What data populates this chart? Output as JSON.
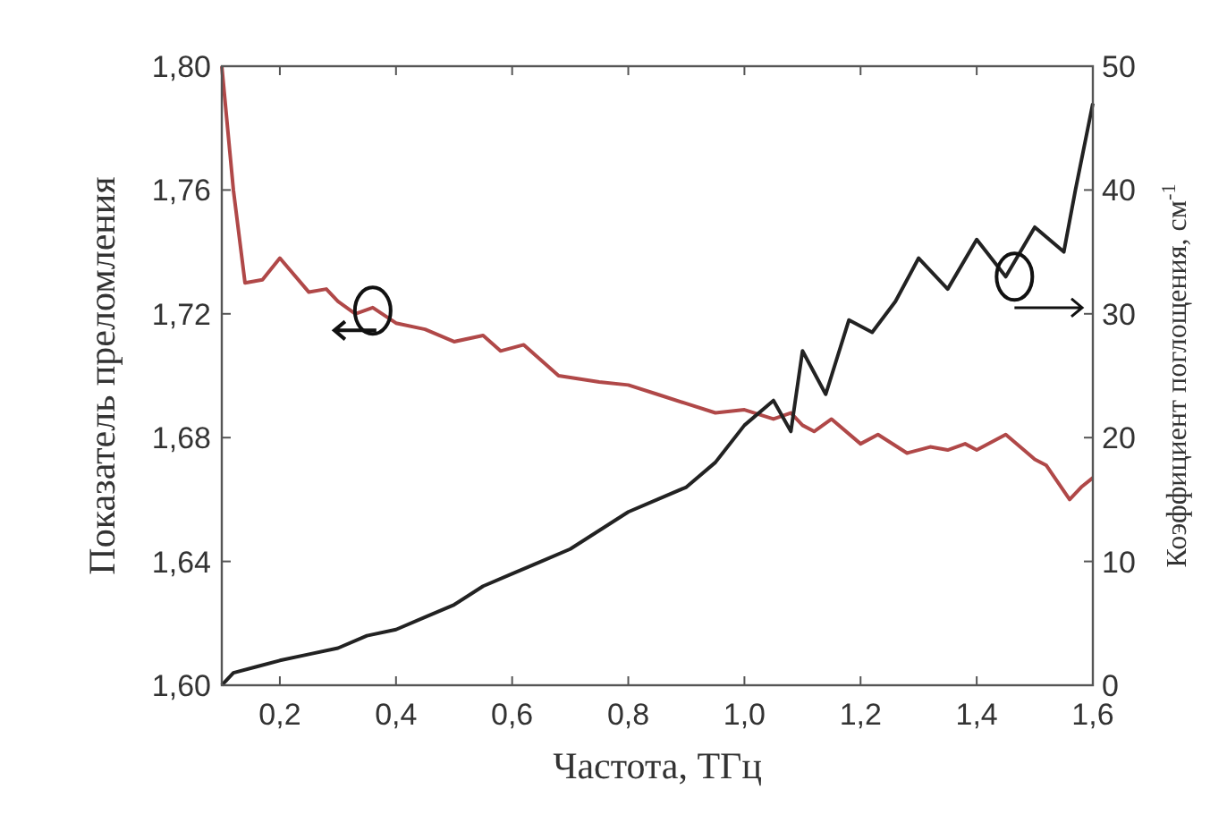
{
  "chart_data": {
    "type": "line",
    "xlabel": "Частота, ТГц",
    "ylabel": "Показатель преломления",
    "y2label": "Коэффициент поглощения, см$^{-1}$",
    "xlim": [
      0.1,
      1.6
    ],
    "xticks": [
      {
        "value": 0.2,
        "label": "0,2"
      },
      {
        "value": 0.4,
        "label": "0,4"
      },
      {
        "value": 0.6,
        "label": "0,6"
      },
      {
        "value": 0.8,
        "label": "0,8"
      },
      {
        "value": 1.0,
        "label": "1,0"
      },
      {
        "value": 1.2,
        "label": "1,2"
      },
      {
        "value": 1.4,
        "label": "1,4"
      },
      {
        "value": 1.6,
        "label": "1,6"
      }
    ],
    "ylim": [
      1.6,
      1.8
    ],
    "yticks": [
      {
        "value": 1.6,
        "label": "1,60"
      },
      {
        "value": 1.64,
        "label": "1,64"
      },
      {
        "value": 1.68,
        "label": "1,68"
      },
      {
        "value": 1.72,
        "label": "1,72"
      },
      {
        "value": 1.76,
        "label": "1,76"
      },
      {
        "value": 1.8,
        "label": "1,80"
      }
    ],
    "y2lim": [
      0,
      50
    ],
    "y2ticks": [
      0,
      10,
      20,
      30,
      40,
      50
    ],
    "grid": false,
    "marker": "none",
    "line_style": "solid",
    "series": [
      {
        "color": "#b04848",
        "x": [
          0.1,
          0.12,
          0.14,
          0.17,
          0.2,
          0.25,
          0.28,
          0.3,
          0.33,
          0.36,
          0.4,
          0.45,
          0.5,
          0.55,
          0.58,
          0.62,
          0.68,
          0.75,
          0.8,
          0.85,
          0.9,
          0.95,
          1.0,
          1.05,
          1.08,
          1.1,
          1.12,
          1.15,
          1.2,
          1.23,
          1.28,
          1.32,
          1.35,
          1.38,
          1.4,
          1.45,
          1.5,
          1.52,
          1.56,
          1.58,
          1.6
        ],
        "values": [
          1.8,
          1.76,
          1.73,
          1.731,
          1.738,
          1.727,
          1.728,
          1.724,
          1.72,
          1.722,
          1.717,
          1.715,
          1.711,
          1.713,
          1.708,
          1.71,
          1.7,
          1.698,
          1.697,
          1.694,
          1.691,
          1.688,
          1.689,
          1.686,
          1.688,
          1.684,
          1.682,
          1.686,
          1.678,
          1.681,
          1.675,
          1.677,
          1.676,
          1.678,
          1.676,
          1.681,
          1.673,
          1.671,
          1.66,
          1.664,
          1.667
        ]
      },
      {
        "color": "#222222",
        "axis": "y2",
        "x": [
          0.1,
          0.12,
          0.16,
          0.2,
          0.25,
          0.3,
          0.35,
          0.4,
          0.45,
          0.5,
          0.55,
          0.6,
          0.65,
          0.7,
          0.75,
          0.8,
          0.85,
          0.9,
          0.95,
          1.0,
          1.05,
          1.08,
          1.1,
          1.14,
          1.18,
          1.22,
          1.26,
          1.3,
          1.35,
          1.4,
          1.45,
          1.5,
          1.55,
          1.57,
          1.6
        ],
        "values": [
          0,
          1,
          1.5,
          2,
          2.5,
          3,
          4,
          4.5,
          5.5,
          6.5,
          8,
          9,
          10,
          11,
          12.5,
          14,
          15,
          16,
          18,
          21,
          23,
          20.5,
          27,
          23.5,
          29.5,
          28.5,
          31,
          34.5,
          32,
          36,
          33,
          37,
          35,
          40,
          47
        ]
      }
    ]
  }
}
